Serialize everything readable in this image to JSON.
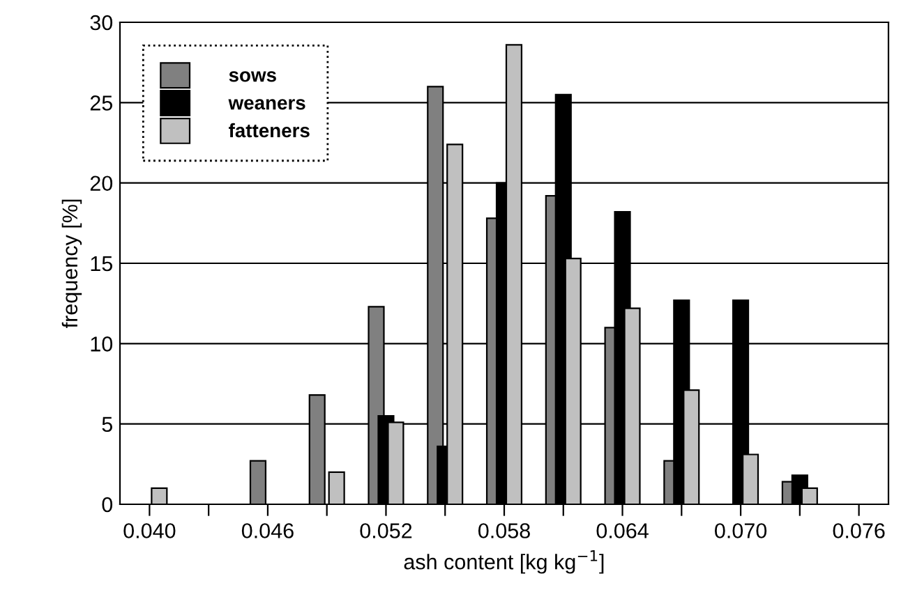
{
  "chart_data": {
    "type": "bar",
    "xlabel": "ash content [kg kg$^{−1}$]",
    "ylabel": "frequency [%]",
    "categories": [
      "0.040",
      null,
      "0.046",
      null,
      "0.052",
      null,
      "0.058",
      null,
      "0.064",
      null,
      "0.070",
      null,
      "0.076"
    ],
    "series": [
      {
        "name": "sows",
        "color": "#808080",
        "values": [
          null,
          null,
          2.7,
          6.8,
          12.3,
          26.0,
          17.8,
          19.2,
          11.0,
          2.7,
          null,
          1.4,
          null
        ]
      },
      {
        "name": "weaners",
        "color": "#000000",
        "values": [
          null,
          null,
          null,
          null,
          5.5,
          3.6,
          20.0,
          25.5,
          18.2,
          12.7,
          12.7,
          1.8,
          null
        ]
      },
      {
        "name": "fatteners",
        "color": "#c0c0c0",
        "values": [
          1.0,
          null,
          null,
          2.0,
          5.1,
          22.4,
          28.6,
          15.3,
          12.2,
          7.1,
          3.1,
          1.0,
          null
        ]
      }
    ],
    "ylim": [
      0,
      30
    ],
    "yticks": [
      0,
      5,
      10,
      15,
      20,
      25,
      30
    ],
    "grid": "y",
    "legend": "top left"
  }
}
